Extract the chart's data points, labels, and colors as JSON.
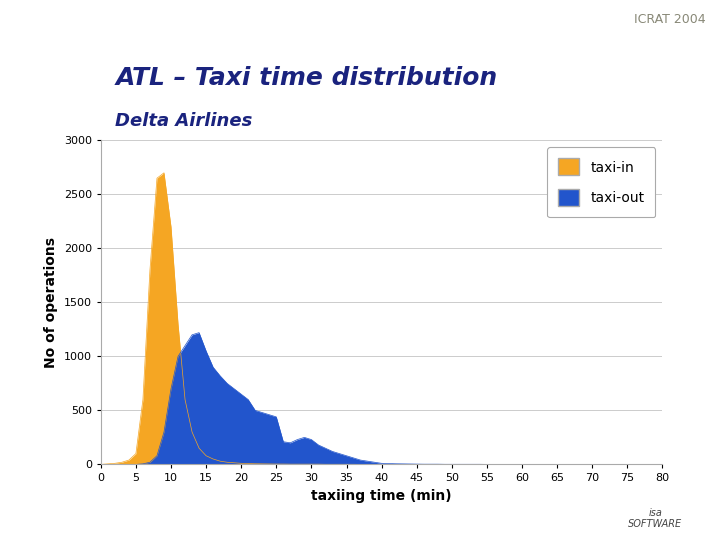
{
  "title": "ATL – Taxi time distribution",
  "subtitle": "Delta Airlines",
  "header_text": "ICRAT 2004",
  "header_color": "#f5e9a0",
  "xlabel": "taxiing time (min)",
  "ylabel": "No of operations",
  "xlim": [
    0,
    80
  ],
  "ylim": [
    0,
    3000
  ],
  "xticks": [
    0,
    5,
    10,
    15,
    20,
    25,
    30,
    35,
    40,
    45,
    50,
    55,
    60,
    65,
    70,
    75,
    80
  ],
  "yticks": [
    0,
    500,
    1000,
    1500,
    2000,
    2500,
    3000
  ],
  "taxi_in_color": "#f5a623",
  "taxi_out_color": "#2255cc",
  "bg_color": "#ffffff",
  "taxi_in_x": [
    0,
    1,
    2,
    3,
    4,
    5,
    6,
    7,
    8,
    9,
    10,
    11,
    12,
    13,
    14,
    15,
    16,
    17,
    18,
    19,
    20,
    21,
    22,
    23,
    24,
    25,
    26,
    27,
    28,
    29,
    30,
    31,
    32,
    33,
    34,
    35,
    36,
    37,
    38,
    39,
    40,
    41,
    42,
    43,
    44,
    45,
    46,
    47,
    48,
    49,
    50,
    51,
    52,
    53,
    54,
    55,
    56,
    57,
    58,
    59,
    60,
    61,
    62,
    63,
    64,
    65,
    66,
    67,
    68,
    69,
    70,
    71,
    72,
    73,
    74,
    75,
    76,
    77,
    78,
    79,
    80
  ],
  "taxi_in_y": [
    0,
    5,
    10,
    20,
    40,
    100,
    600,
    1800,
    2650,
    2700,
    2200,
    1300,
    600,
    300,
    150,
    80,
    50,
    30,
    20,
    15,
    10,
    8,
    6,
    5,
    4,
    3,
    3,
    2,
    2,
    2,
    2,
    2,
    1,
    1,
    1,
    1,
    1,
    0,
    0,
    0,
    0,
    0,
    0,
    0,
    0,
    0,
    0,
    0,
    0,
    0,
    0,
    0,
    0,
    0,
    0,
    0,
    0,
    0,
    0,
    0,
    0,
    0,
    0,
    0,
    0,
    0,
    0,
    0,
    0,
    0,
    0,
    0,
    0,
    0,
    0,
    0,
    0,
    0,
    0,
    0,
    0
  ],
  "taxi_out_x": [
    0,
    1,
    2,
    3,
    4,
    5,
    6,
    7,
    8,
    9,
    10,
    11,
    12,
    13,
    14,
    15,
    16,
    17,
    18,
    19,
    20,
    21,
    22,
    23,
    24,
    25,
    26,
    27,
    28,
    29,
    30,
    31,
    32,
    33,
    34,
    35,
    36,
    37,
    38,
    39,
    40,
    41,
    42,
    43,
    44,
    45,
    46,
    47,
    48,
    49,
    50,
    51,
    52,
    53,
    54,
    55,
    56,
    57,
    58,
    59,
    60,
    61,
    62,
    63,
    64,
    65,
    66,
    67,
    68,
    69,
    70,
    71,
    72,
    73,
    74,
    75,
    76,
    77,
    78,
    79,
    80
  ],
  "taxi_out_y": [
    0,
    0,
    0,
    0,
    0,
    0,
    5,
    20,
    80,
    300,
    700,
    1000,
    1100,
    1200,
    1220,
    1050,
    900,
    820,
    750,
    700,
    650,
    600,
    500,
    480,
    460,
    440,
    210,
    200,
    230,
    250,
    230,
    180,
    150,
    120,
    100,
    80,
    60,
    40,
    30,
    20,
    10,
    8,
    6,
    5,
    4,
    3,
    2,
    2,
    2,
    1,
    1,
    1,
    1,
    1,
    1,
    0,
    0,
    0,
    0,
    0,
    0,
    0,
    0,
    0,
    0,
    0,
    0,
    0,
    0,
    0,
    0,
    0,
    0,
    0,
    0,
    0,
    0,
    0,
    0,
    0,
    0
  ]
}
